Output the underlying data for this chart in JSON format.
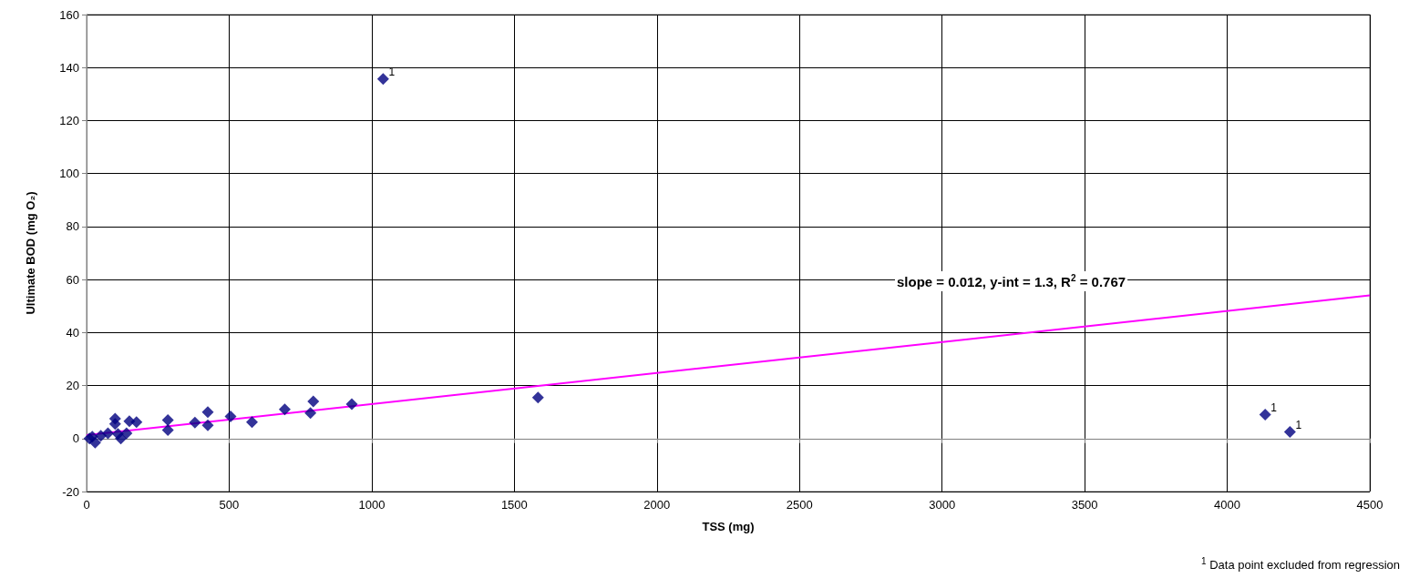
{
  "chart_data": {
    "type": "scatter",
    "xlabel": "TSS (mg)",
    "ylabel": "Ultimate BOD (mg O₂)",
    "xlim": [
      0,
      4500
    ],
    "xticks": [
      0,
      500,
      1000,
      1500,
      2000,
      2500,
      3000,
      3500,
      4000,
      4500
    ],
    "ylim": [
      -20,
      160
    ],
    "yticks": [
      -20,
      0,
      20,
      40,
      60,
      80,
      100,
      120,
      140,
      160
    ],
    "grid": true,
    "marker": "diamond",
    "series": [
      {
        "color": "#000080",
        "x": [
          10,
          30,
          20,
          50,
          75,
          100,
          100,
          110,
          120,
          140,
          150,
          175,
          285,
          285,
          380,
          425,
          425,
          505,
          580,
          695,
          785,
          795,
          930,
          1040,
          1583,
          4133,
          4220
        ],
        "values": [
          0,
          -1.5,
          0.7,
          1,
          2,
          5.5,
          7.5,
          1.7,
          0,
          2,
          6.5,
          6.2,
          7,
          3.2,
          6,
          10,
          5,
          8.3,
          6.2,
          11,
          9.6,
          14,
          13,
          135.7,
          15.5,
          9,
          2.5
        ]
      },
      {
        "type": "line",
        "color": "#ff00ff",
        "marker": "none",
        "line_style": "solid",
        "x": [
          0,
          4500
        ],
        "values": [
          1.3,
          54
        ]
      }
    ],
    "annotations": [
      {
        "text": "1",
        "x": 1040,
        "y": 135.7
      },
      {
        "text": "1",
        "x": 4133,
        "y": 9
      },
      {
        "text": "1",
        "x": 4220,
        "y": 2.5
      },
      "slope = 0.012, y-int = 1.3, R$^{2}$ = 0.767",
      "$^{1}$ Data point excluded from regression"
    ]
  }
}
